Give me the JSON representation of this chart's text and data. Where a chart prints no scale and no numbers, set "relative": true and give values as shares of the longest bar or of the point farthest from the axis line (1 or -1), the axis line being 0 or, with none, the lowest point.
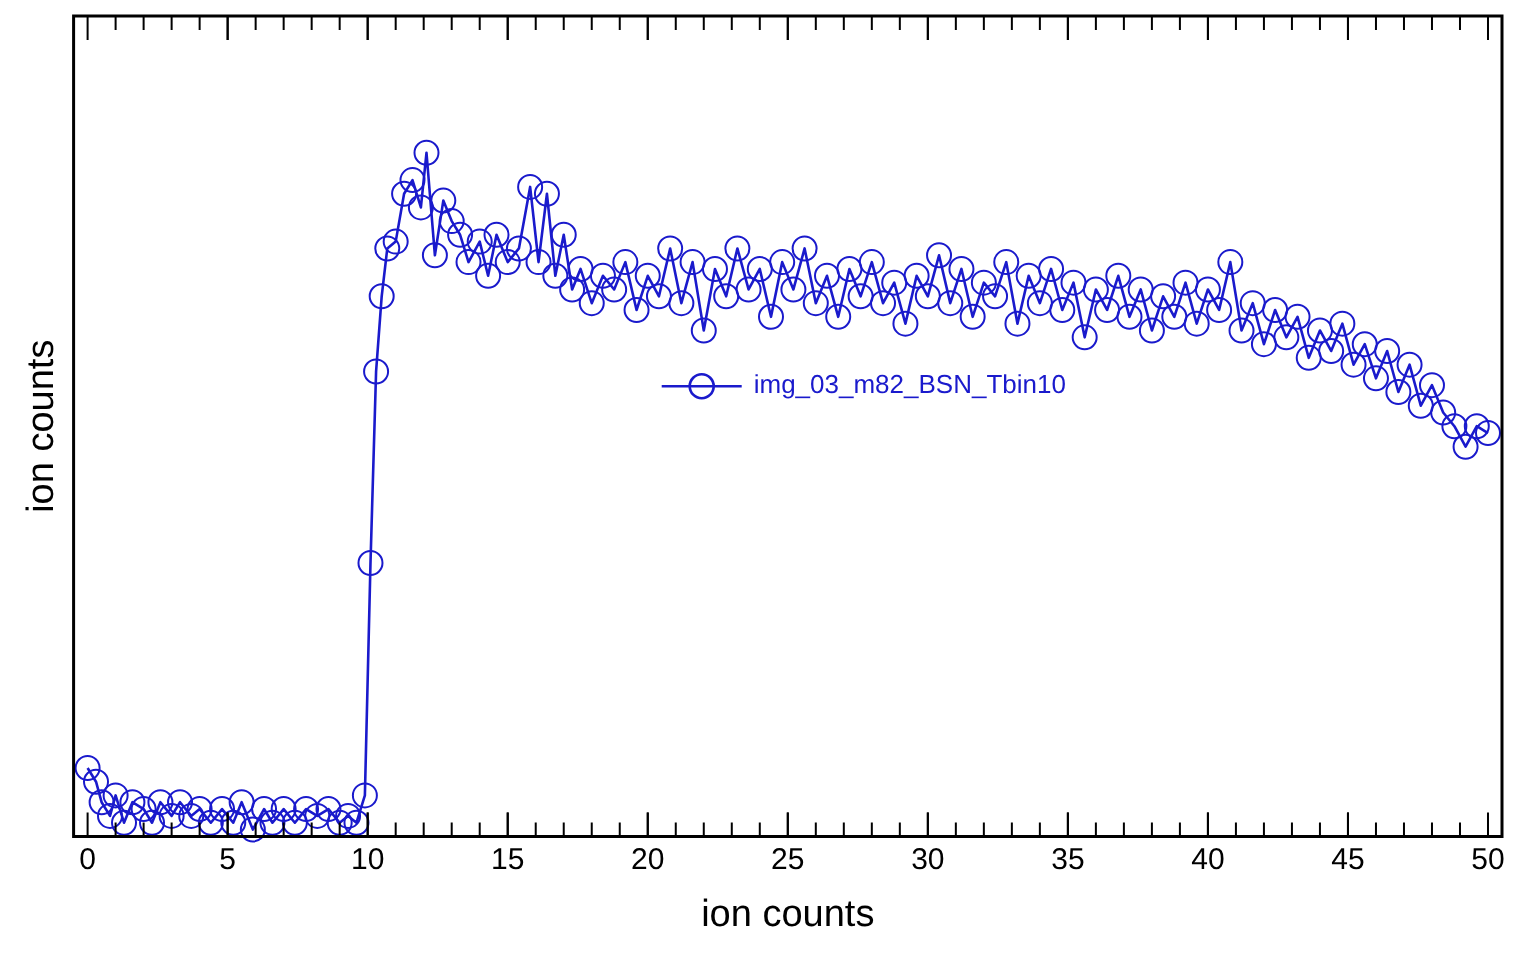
{
  "chart_data": {
    "type": "line",
    "xlabel": "ion counts",
    "ylabel": "ion counts",
    "relative": true,
    "xlim": [
      -0.5,
      50.5
    ],
    "xticks": [
      0,
      5,
      10,
      15,
      20,
      25,
      30,
      35,
      40,
      45,
      50
    ],
    "tick_labels": "x",
    "grid": false,
    "legend": "center",
    "marker": "circle",
    "line_style": "solid",
    "series": [
      {
        "name": "img_03_m82_BSN_Tbin10",
        "color": "#1a1acc",
        "x": [
          0,
          0.3,
          0.5,
          0.8,
          1,
          1.3,
          1.6,
          2,
          2.3,
          2.6,
          3,
          3.3,
          3.7,
          4,
          4.4,
          4.8,
          5.2,
          5.5,
          5.9,
          6.3,
          6.6,
          7,
          7.4,
          7.8,
          8.2,
          8.6,
          9,
          9.3,
          9.6,
          9.9,
          10.1,
          10.3,
          10.5,
          10.7,
          11,
          11.3,
          11.6,
          11.9,
          12.1,
          12.4,
          12.7,
          13,
          13.3,
          13.6,
          14,
          14.3,
          14.6,
          15,
          15.4,
          15.8,
          16.1,
          16.4,
          16.7,
          17,
          17.3,
          17.6,
          18,
          18.4,
          18.8,
          19.2,
          19.6,
          20,
          20.4,
          20.8,
          21.2,
          21.6,
          22,
          22.4,
          22.8,
          23.2,
          23.6,
          24,
          24.4,
          24.8,
          25.2,
          25.6,
          26,
          26.4,
          26.8,
          27.2,
          27.6,
          28,
          28.4,
          28.8,
          29.2,
          29.6,
          30,
          30.4,
          30.8,
          31.2,
          31.6,
          32,
          32.4,
          32.8,
          33.2,
          33.6,
          34,
          34.4,
          34.8,
          35.2,
          35.6,
          36,
          36.4,
          36.8,
          37.2,
          37.6,
          38,
          38.4,
          38.8,
          39.2,
          39.6,
          40,
          40.4,
          40.8,
          41.2,
          41.6,
          42,
          42.4,
          42.8,
          43.2,
          43.6,
          44,
          44.4,
          44.8,
          45.2,
          45.6,
          46,
          46.4,
          46.8,
          47.2,
          47.6,
          48,
          48.4,
          48.8,
          49.2,
          49.6,
          50
        ],
        "values": [
          0.1,
          0.08,
          0.05,
          0.03,
          0.06,
          0.02,
          0.05,
          0.04,
          0.02,
          0.05,
          0.03,
          0.05,
          0.03,
          0.04,
          0.02,
          0.04,
          0.02,
          0.05,
          0.01,
          0.04,
          0.02,
          0.04,
          0.02,
          0.04,
          0.03,
          0.04,
          0.02,
          0.03,
          0.02,
          0.06,
          0.4,
          0.68,
          0.79,
          0.86,
          0.87,
          0.94,
          0.96,
          0.92,
          1.0,
          0.85,
          0.93,
          0.9,
          0.88,
          0.84,
          0.87,
          0.82,
          0.88,
          0.84,
          0.86,
          0.95,
          0.84,
          0.94,
          0.82,
          0.88,
          0.8,
          0.83,
          0.78,
          0.82,
          0.8,
          0.84,
          0.77,
          0.82,
          0.79,
          0.86,
          0.78,
          0.84,
          0.74,
          0.83,
          0.79,
          0.86,
          0.8,
          0.83,
          0.76,
          0.84,
          0.8,
          0.86,
          0.78,
          0.82,
          0.76,
          0.83,
          0.79,
          0.84,
          0.78,
          0.81,
          0.75,
          0.82,
          0.79,
          0.85,
          0.78,
          0.83,
          0.76,
          0.81,
          0.79,
          0.84,
          0.75,
          0.82,
          0.78,
          0.83,
          0.77,
          0.81,
          0.73,
          0.8,
          0.77,
          0.82,
          0.76,
          0.8,
          0.74,
          0.79,
          0.76,
          0.81,
          0.75,
          0.8,
          0.77,
          0.84,
          0.74,
          0.78,
          0.72,
          0.77,
          0.73,
          0.76,
          0.7,
          0.74,
          0.71,
          0.75,
          0.69,
          0.72,
          0.67,
          0.71,
          0.65,
          0.69,
          0.63,
          0.66,
          0.62,
          0.6,
          0.57,
          0.6,
          0.59
        ]
      }
    ]
  }
}
